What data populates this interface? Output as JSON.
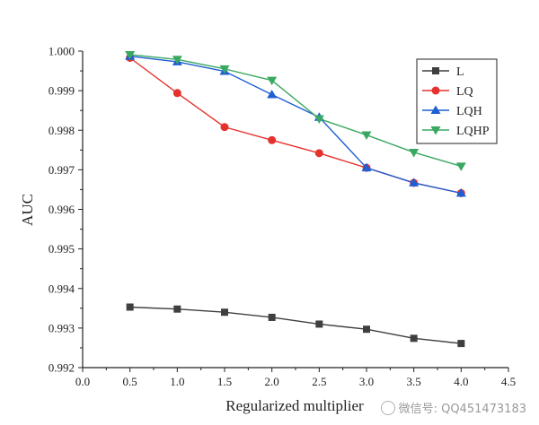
{
  "chart_data": {
    "type": "line",
    "title": "",
    "xlabel": "Regularized multiplier",
    "ylabel": "AUC",
    "xlim": [
      0.0,
      4.5
    ],
    "ylim": [
      0.992,
      1.0
    ],
    "xticks": [
      "0.0",
      "0.5",
      "1.0",
      "1.5",
      "2.0",
      "2.5",
      "3.0",
      "3.5",
      "4.0",
      "4.5"
    ],
    "xtick_values": [
      0.0,
      0.5,
      1.0,
      1.5,
      2.0,
      2.5,
      3.0,
      3.5,
      4.0,
      4.5
    ],
    "yticks": [
      "0.992",
      "0.993",
      "0.994",
      "0.995",
      "0.996",
      "0.997",
      "0.998",
      "0.999",
      "1.000"
    ],
    "ytick_values": [
      0.992,
      0.993,
      0.994,
      0.995,
      0.996,
      0.997,
      0.998,
      0.999,
      1.0
    ],
    "grid": false,
    "legend_position": "top-right",
    "x": [
      0.5,
      1.0,
      1.5,
      2.0,
      2.5,
      3.0,
      3.5,
      4.0
    ],
    "series": [
      {
        "name": "L",
        "color": "#3f3f3f",
        "marker": "square",
        "values": [
          0.99353,
          0.99348,
          0.9934,
          0.99327,
          0.9931,
          0.99297,
          0.99274,
          0.99261
        ]
      },
      {
        "name": "LQ",
        "color": "#e5322d",
        "marker": "circle",
        "values": [
          0.99983,
          0.99894,
          0.99808,
          0.99775,
          0.99742,
          0.99705,
          0.99667,
          0.99641
        ]
      },
      {
        "name": "LQH",
        "color": "#1f5fd1",
        "marker": "triangle-up",
        "values": [
          0.99987,
          0.99973,
          0.99949,
          0.9989,
          0.99833,
          0.99705,
          0.99667,
          0.99641
        ]
      },
      {
        "name": "LQHP",
        "color": "#3aa862",
        "marker": "triangle-down",
        "values": [
          0.99991,
          0.99979,
          0.99955,
          0.99926,
          0.99829,
          0.99788,
          0.99744,
          0.99709
        ]
      }
    ]
  },
  "watermark": {
    "text": "微信号: QQ451473183"
  }
}
